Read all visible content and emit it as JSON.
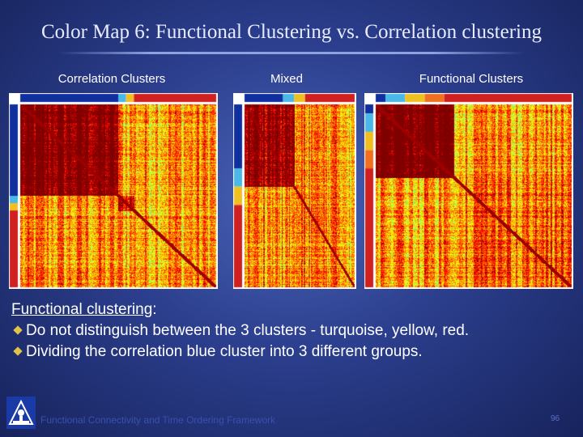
{
  "slide": {
    "title": "Color Map 6: Functional Clustering vs. Correlation clustering"
  },
  "panels": [
    {
      "label": "Correlation Clusters",
      "type": "correlation"
    },
    {
      "label": "Mixed",
      "type": "mixed"
    },
    {
      "label": "Functional Clusters",
      "type": "functional"
    }
  ],
  "body": {
    "heading": "Functional clustering",
    "heading_suffix": ":",
    "bullets": [
      "Do not distinguish between the 3 clusters - turquoise, yellow, red.",
      "Dividing the correlation blue cluster into 3 different groups."
    ]
  },
  "footer": {
    "text": "Functional Connectivity and Time Ordering Framework",
    "page_number": "96"
  },
  "colors": {
    "background": "#2c3f8e",
    "bullet": "#e0c24a",
    "cluster_blue": "#1030a0",
    "cluster_turquoise": "#4ab8e8",
    "cluster_yellow": "#f0c020",
    "cluster_red": "#d02020",
    "cluster_orange": "#f07020"
  },
  "icons": {
    "bullet": "diamond-bullet-icon",
    "logo": "university-logo-icon"
  }
}
